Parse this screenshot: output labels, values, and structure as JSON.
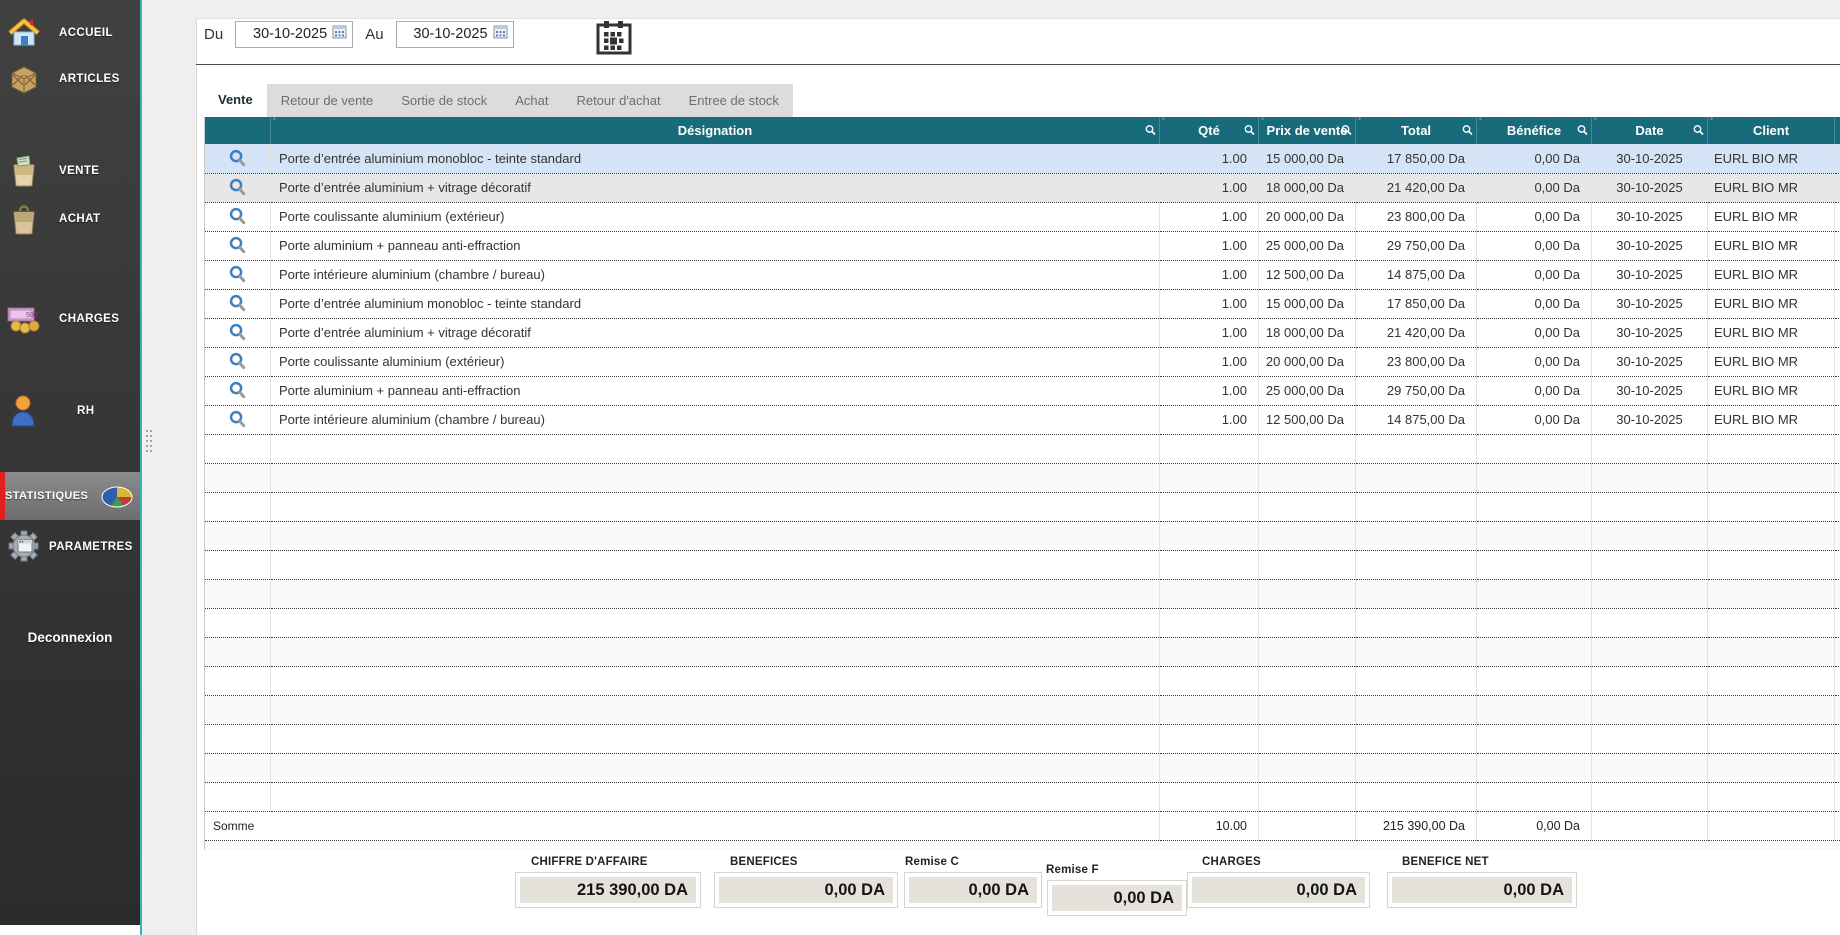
{
  "colors": {
    "header_teal": "#186b7b",
    "sidebar_accent": "#33b5bc",
    "active_item_red": "#e41f1f",
    "selected_row_blue": "#d5e3f6"
  },
  "sidebar": {
    "items": [
      {
        "label": "ACCUEIL",
        "icon": "home-icon",
        "active": false
      },
      {
        "label": "ARTICLES",
        "icon": "crate-icon",
        "active": false
      },
      {
        "label": "VENTE",
        "icon": "sale-bag-icon",
        "active": false
      },
      {
        "label": "ACHAT",
        "icon": "purchase-bag-icon",
        "active": false
      },
      {
        "label": "CHARGES",
        "icon": "money-icon",
        "active": false
      },
      {
        "label": "RH",
        "icon": "person-icon",
        "active": false
      },
      {
        "label": "STATISTIQUES",
        "icon": "pie-chart-icon",
        "active": true
      },
      {
        "label": "PARAMETRES",
        "icon": "gear-icon",
        "active": false
      }
    ],
    "logout_label": "Deconnexion"
  },
  "filters": {
    "du_label": "Du",
    "du_value": "30-10-2025",
    "au_label": "Au",
    "au_value": "30-10-2025"
  },
  "tabs": [
    {
      "label": "Vente",
      "active": true
    },
    {
      "label": "Retour de vente",
      "active": false
    },
    {
      "label": "Sortie de stock",
      "active": false
    },
    {
      "label": "Achat",
      "active": false
    },
    {
      "label": "Retour d'achat",
      "active": false
    },
    {
      "label": "Entree de stock",
      "active": false
    }
  ],
  "table": {
    "columns": [
      {
        "key": "icon",
        "label": ""
      },
      {
        "key": "designation",
        "label": "Désignation"
      },
      {
        "key": "qty",
        "label": "Qté"
      },
      {
        "key": "price",
        "label": "Prix de vente"
      },
      {
        "key": "total",
        "label": "Total"
      },
      {
        "key": "benefit",
        "label": "Bénéfice"
      },
      {
        "key": "date",
        "label": "Date"
      },
      {
        "key": "client",
        "label": "Client"
      }
    ],
    "rows": [
      {
        "designation": "Porte d’entrée aluminium monobloc - teinte standard",
        "qty": "1.00",
        "price": "15 000,00 Da",
        "total": "17 850,00 Da",
        "benefit": "0,00 Da",
        "date": "30-10-2025",
        "client": "EURL BIO MR",
        "selected": true,
        "shaded": false
      },
      {
        "designation": "Porte d’entrée aluminium + vitrage décoratif",
        "qty": "1.00",
        "price": "18 000,00 Da",
        "total": "21 420,00 Da",
        "benefit": "0,00 Da",
        "date": "30-10-2025",
        "client": "EURL BIO MR",
        "selected": false,
        "shaded": true
      },
      {
        "designation": "Porte coulissante aluminium (extérieur)",
        "qty": "1.00",
        "price": "20 000,00 Da",
        "total": "23 800,00 Da",
        "benefit": "0,00 Da",
        "date": "30-10-2025",
        "client": "EURL BIO MR",
        "selected": false,
        "shaded": false
      },
      {
        "designation": "Porte aluminium + panneau anti-effraction",
        "qty": "1.00",
        "price": "25 000,00 Da",
        "total": "29 750,00 Da",
        "benefit": "0,00 Da",
        "date": "30-10-2025",
        "client": "EURL BIO MR",
        "selected": false,
        "shaded": false
      },
      {
        "designation": "Porte intérieure aluminium (chambre / bureau)",
        "qty": "1.00",
        "price": "12 500,00 Da",
        "total": "14 875,00 Da",
        "benefit": "0,00 Da",
        "date": "30-10-2025",
        "client": "EURL BIO MR",
        "selected": false,
        "shaded": false
      },
      {
        "designation": "Porte d’entrée aluminium monobloc - teinte standard",
        "qty": "1.00",
        "price": "15 000,00 Da",
        "total": "17 850,00 Da",
        "benefit": "0,00 Da",
        "date": "30-10-2025",
        "client": "EURL BIO MR",
        "selected": false,
        "shaded": false
      },
      {
        "designation": "Porte d’entrée aluminium + vitrage décoratif",
        "qty": "1.00",
        "price": "18 000,00 Da",
        "total": "21 420,00 Da",
        "benefit": "0,00 Da",
        "date": "30-10-2025",
        "client": "EURL BIO MR",
        "selected": false,
        "shaded": false
      },
      {
        "designation": "Porte coulissante aluminium (extérieur)",
        "qty": "1.00",
        "price": "20 000,00 Da",
        "total": "23 800,00 Da",
        "benefit": "0,00 Da",
        "date": "30-10-2025",
        "client": "EURL BIO MR",
        "selected": false,
        "shaded": false
      },
      {
        "designation": "Porte aluminium + panneau anti-effraction",
        "qty": "1.00",
        "price": "25 000,00 Da",
        "total": "29 750,00 Da",
        "benefit": "0,00 Da",
        "date": "30-10-2025",
        "client": "EURL BIO MR",
        "selected": false,
        "shaded": false
      },
      {
        "designation": "Porte intérieure aluminium (chambre / bureau)",
        "qty": "1.00",
        "price": "12 500,00 Da",
        "total": "14 875,00 Da",
        "benefit": "0,00 Da",
        "date": "30-10-2025",
        "client": "EURL BIO MR",
        "selected": false,
        "shaded": false
      }
    ],
    "empty_row_count": 13,
    "sum_row": {
      "label": "Somme",
      "qty": "10.00",
      "total": "215 390,00 Da",
      "benefit": "0,00 Da"
    }
  },
  "summary": {
    "fields": [
      {
        "label": "CHIFFRE D'AFFAIRE",
        "value": "215 390,00 DA"
      },
      {
        "label": "BENEFICES",
        "value": "0,00 DA"
      },
      {
        "label": "Remise C",
        "value": "0,00 DA"
      },
      {
        "label": "Remise F",
        "value": "0,00 DA"
      },
      {
        "label": "CHARGES",
        "value": "0,00 DA"
      },
      {
        "label": "BENEFICE NET",
        "value": "0,00 DA"
      }
    ]
  }
}
